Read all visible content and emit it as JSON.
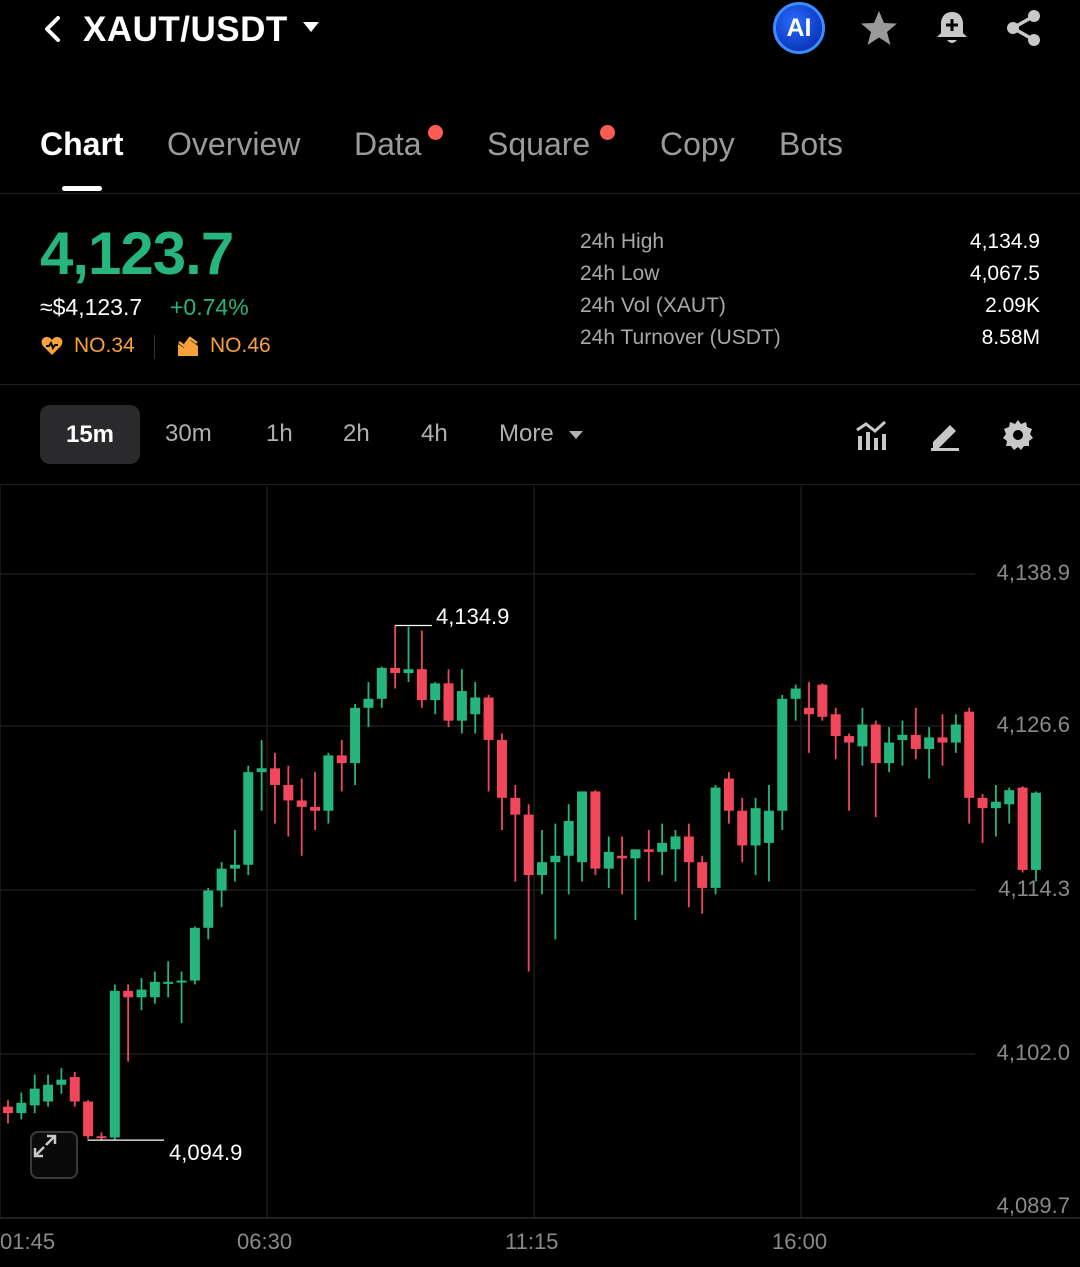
{
  "header": {
    "pair": "XAUT/USDT",
    "ai_label": "AI"
  },
  "tabs": [
    {
      "label": "Chart",
      "active": true
    },
    {
      "label": "Overview"
    },
    {
      "label": "Data",
      "dot": true
    },
    {
      "label": "Square",
      "dot": true
    },
    {
      "label": "Copy"
    },
    {
      "label": "Bots"
    }
  ],
  "ticker": {
    "last_price": "4,123.7",
    "fiat_price": "≈$4,123.7",
    "change_pct": "+0.74%",
    "rank1": "NO.34",
    "rank2": "NO.46",
    "stats": [
      {
        "label": "24h High",
        "value": "4,134.9"
      },
      {
        "label": "24h Low",
        "value": "4,067.5"
      },
      {
        "label": "24h Vol (XAUT)",
        "value": "2.09K"
      },
      {
        "label": "24h Turnover (USDT)",
        "value": "8.58M"
      }
    ]
  },
  "intervals": {
    "active": "15m",
    "others": [
      "30m",
      "1h",
      "2h",
      "4h"
    ],
    "more": "More"
  },
  "colors": {
    "up": "#26b57d",
    "down": "#f0485a",
    "accent_orange": "#f7a23b"
  },
  "chart_data": {
    "type": "candlestick",
    "y_ticks": [
      "4,138.9",
      "4,126.6",
      "4,114.3",
      "4,102.0",
      "4,089.7"
    ],
    "x_ticks": [
      "01:45",
      "06:30",
      "11:15",
      "16:00"
    ],
    "ylim": [
      4089.7,
      4138.9
    ],
    "annotations": {
      "high": "4,134.9",
      "low": "4,094.9"
    },
    "candles": [
      [
        4097.5,
        4098.0,
        4096.2,
        4097.0
      ],
      [
        4097.0,
        4098.6,
        4096.5,
        4097.8
      ],
      [
        4097.6,
        4100.0,
        4097.0,
        4098.9
      ],
      [
        4097.9,
        4100.0,
        4097.5,
        4099.2
      ],
      [
        4099.2,
        4100.5,
        4098.5,
        4099.6
      ],
      [
        4099.8,
        4100.2,
        4097.5,
        4097.9
      ],
      [
        4097.9,
        4098.0,
        4095.0,
        4095.2
      ],
      [
        4095.2,
        4095.5,
        4094.9,
        4095.1
      ],
      [
        4095.1,
        4107.0,
        4094.9,
        4106.5
      ],
      [
        4106.5,
        4107.0,
        4101.0,
        4106.0
      ],
      [
        4106.0,
        4107.5,
        4105.0,
        4106.6
      ],
      [
        4106.0,
        4108.0,
        4105.5,
        4107.2
      ],
      [
        4107.2,
        4108.8,
        4106.0,
        4107.2
      ],
      [
        4107.2,
        4108.0,
        4104.0,
        4107.3
      ],
      [
        4107.3,
        4111.5,
        4107.0,
        4111.4
      ],
      [
        4111.4,
        4114.5,
        4110.5,
        4114.3
      ],
      [
        4114.3,
        4116.5,
        4113.0,
        4116.0
      ],
      [
        4116.0,
        4119.0,
        4115.0,
        4116.3
      ],
      [
        4116.3,
        4124.0,
        4115.5,
        4123.5
      ],
      [
        4123.5,
        4126.0,
        4120.5,
        4123.8
      ],
      [
        4123.8,
        4125.0,
        4119.5,
        4122.5
      ],
      [
        4122.5,
        4124.0,
        4118.5,
        4121.3
      ],
      [
        4121.3,
        4123.0,
        4117.0,
        4120.8
      ],
      [
        4120.8,
        4123.5,
        4119.0,
        4120.5
      ],
      [
        4120.5,
        4125.0,
        4119.5,
        4124.8
      ],
      [
        4124.8,
        4126.0,
        4122.0,
        4124.2
      ],
      [
        4124.2,
        4128.8,
        4122.5,
        4128.5
      ],
      [
        4128.5,
        4130.5,
        4127.0,
        4129.2
      ],
      [
        4129.2,
        4131.7,
        4128.5,
        4131.6
      ],
      [
        4131.6,
        4134.9,
        4130.0,
        4131.2
      ],
      [
        4131.2,
        4134.8,
        4130.5,
        4131.5
      ],
      [
        4131.5,
        4134.5,
        4128.5,
        4129.1
      ],
      [
        4129.1,
        4130.5,
        4128.0,
        4130.4
      ],
      [
        4130.4,
        4131.5,
        4127.0,
        4127.5
      ],
      [
        4127.5,
        4131.5,
        4126.5,
        4129.8
      ],
      [
        4128.0,
        4130.5,
        4126.5,
        4129.3
      ],
      [
        4129.3,
        4129.5,
        4122.0,
        4126.0
      ],
      [
        4126.0,
        4126.5,
        4119.0,
        4121.5
      ],
      [
        4121.5,
        4122.5,
        4115.0,
        4120.2
      ],
      [
        4120.2,
        4121.0,
        4108.0,
        4115.5
      ],
      [
        4115.5,
        4119.0,
        4114.0,
        4116.5
      ],
      [
        4116.5,
        4119.5,
        4110.5,
        4117.0
      ],
      [
        4117.0,
        4121.0,
        4114.0,
        4119.7
      ],
      [
        4116.5,
        4122.0,
        4115.0,
        4122.0
      ],
      [
        4122.0,
        4122.1,
        4115.5,
        4116.0
      ],
      [
        4116.0,
        4118.5,
        4114.5,
        4117.3
      ],
      [
        4117.0,
        4118.5,
        4114.0,
        4116.8
      ],
      [
        4116.8,
        4117.5,
        4112.0,
        4117.5
      ],
      [
        4117.5,
        4119.0,
        4115.0,
        4117.3
      ],
      [
        4117.3,
        4119.5,
        4115.5,
        4118.0
      ],
      [
        4117.5,
        4119.0,
        4115.0,
        4118.5
      ],
      [
        4118.5,
        4119.5,
        4113.0,
        4116.5
      ],
      [
        4116.5,
        4117.0,
        4112.5,
        4114.5
      ],
      [
        4114.5,
        4122.5,
        4114.0,
        4122.3
      ],
      [
        4123.0,
        4123.5,
        4119.5,
        4120.5
      ],
      [
        4120.5,
        4121.5,
        4116.5,
        4117.8
      ],
      [
        4117.8,
        4121.5,
        4115.5,
        4120.7
      ],
      [
        4118.0,
        4122.5,
        4115.0,
        4120.5
      ],
      [
        4120.5,
        4129.5,
        4119.0,
        4129.2
      ],
      [
        4129.2,
        4130.3,
        4127.5,
        4130.0
      ],
      [
        4128.5,
        4130.5,
        4125.0,
        4128.0
      ],
      [
        4130.3,
        4130.4,
        4127.5,
        4127.8
      ],
      [
        4128.0,
        4128.5,
        4124.5,
        4126.3
      ],
      [
        4126.3,
        4126.5,
        4120.5,
        4125.8
      ],
      [
        4125.5,
        4128.5,
        4124.0,
        4127.2
      ],
      [
        4127.2,
        4127.5,
        4120.0,
        4124.2
      ],
      [
        4124.2,
        4127.0,
        4123.5,
        4125.8
      ],
      [
        4126.0,
        4127.5,
        4124.0,
        4126.4
      ],
      [
        4126.4,
        4128.5,
        4124.5,
        4125.3
      ],
      [
        4125.3,
        4127.0,
        4123.0,
        4126.2
      ],
      [
        4126.2,
        4128.0,
        4124.0,
        4125.8
      ],
      [
        4125.8,
        4128.0,
        4125.0,
        4127.2
      ],
      [
        4128.2,
        4128.5,
        4119.5,
        4121.5
      ],
      [
        4121.5,
        4121.8,
        4118.0,
        4120.7
      ],
      [
        4120.7,
        4122.5,
        4118.5,
        4121.2
      ],
      [
        4121.0,
        4122.3,
        4119.5,
        4122.1
      ],
      [
        4122.3,
        4122.4,
        4115.7,
        4115.9
      ],
      [
        4115.9,
        4122.0,
        4115.0,
        4121.9
      ]
    ]
  }
}
